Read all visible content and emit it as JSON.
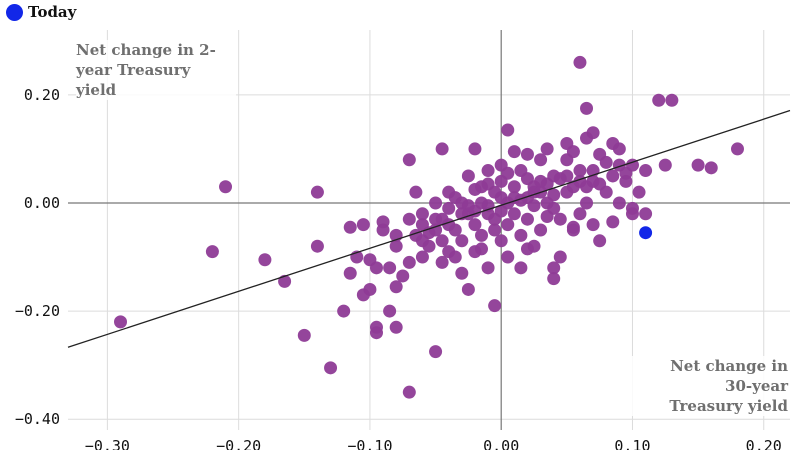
{
  "colors": {
    "scatter": "#8e3b96",
    "today": "#1227e8",
    "fit": "#222222",
    "grid": "#dcdcdc",
    "zero": "#777777",
    "label": "#6f6f6f"
  },
  "legend": {
    "label": "Today",
    "icon": "circle-marker"
  },
  "chart_data": {
    "type": "scatter",
    "xlabel": "Net change in\n30-year\nTreasury yield",
    "ylabel": "Net change in 2-\nyear Treasury\nyield",
    "xlim": [
      -0.33,
      0.22
    ],
    "ylim": [
      -0.42,
      0.32
    ],
    "x_ticks": [
      -0.3,
      -0.2,
      -0.1,
      0.0,
      0.1,
      0.2
    ],
    "x_tick_labels": [
      "−0.30",
      "−0.20",
      "−0.10",
      "0.00",
      "0.10",
      "0.20"
    ],
    "y_ticks": [
      -0.4,
      -0.2,
      0.0,
      0.2
    ],
    "y_tick_labels": [
      "−0.40",
      "−0.20",
      "0.00",
      "0.20"
    ],
    "grid": true,
    "legend_position": "top-left",
    "trendline": {
      "x": [
        -0.33,
        0.22
      ],
      "y": [
        -0.267,
        0.171
      ]
    },
    "series": [
      {
        "name": "",
        "points": [
          [
            -0.29,
            -0.22
          ],
          [
            -0.22,
            -0.09
          ],
          [
            -0.21,
            0.03
          ],
          [
            -0.18,
            -0.105
          ],
          [
            -0.165,
            -0.145
          ],
          [
            -0.15,
            -0.245
          ],
          [
            -0.14,
            -0.08
          ],
          [
            -0.14,
            0.02
          ],
          [
            -0.13,
            -0.305
          ],
          [
            -0.115,
            -0.13
          ],
          [
            -0.115,
            -0.045
          ],
          [
            -0.105,
            -0.17
          ],
          [
            -0.1,
            -0.105
          ],
          [
            -0.1,
            -0.16
          ],
          [
            -0.095,
            -0.23
          ],
          [
            -0.095,
            -0.24
          ],
          [
            -0.095,
            -0.12
          ],
          [
            -0.09,
            -0.035
          ],
          [
            -0.085,
            -0.2
          ],
          [
            -0.085,
            -0.12
          ],
          [
            -0.08,
            -0.155
          ],
          [
            -0.08,
            -0.23
          ],
          [
            -0.08,
            -0.06
          ],
          [
            -0.075,
            -0.135
          ],
          [
            -0.07,
            -0.35
          ],
          [
            -0.07,
            -0.11
          ],
          [
            -0.07,
            -0.03
          ],
          [
            -0.065,
            -0.06
          ],
          [
            -0.06,
            -0.04
          ],
          [
            -0.06,
            -0.1
          ],
          [
            -0.06,
            -0.02
          ],
          [
            -0.055,
            -0.08
          ],
          [
            -0.055,
            -0.055
          ],
          [
            -0.05,
            -0.275
          ],
          [
            -0.05,
            -0.05
          ],
          [
            -0.05,
            0.0
          ],
          [
            -0.045,
            -0.11
          ],
          [
            -0.045,
            -0.07
          ],
          [
            -0.045,
            -0.03
          ],
          [
            -0.04,
            -0.09
          ],
          [
            -0.04,
            -0.01
          ],
          [
            -0.04,
            0.02
          ],
          [
            -0.035,
            -0.05
          ],
          [
            -0.035,
            -0.1
          ],
          [
            -0.03,
            0.0
          ],
          [
            -0.03,
            -0.13
          ],
          [
            -0.03,
            -0.07
          ],
          [
            -0.025,
            -0.02
          ],
          [
            -0.025,
            0.05
          ],
          [
            -0.025,
            -0.16
          ],
          [
            -0.02,
            -0.04
          ],
          [
            -0.02,
            0.1
          ],
          [
            -0.02,
            -0.09
          ],
          [
            -0.015,
            0.0
          ],
          [
            -0.015,
            -0.06
          ],
          [
            -0.015,
            0.03
          ],
          [
            -0.01,
            -0.02
          ],
          [
            -0.01,
            0.06
          ],
          [
            -0.01,
            -0.12
          ],
          [
            -0.005,
            -0.05
          ],
          [
            -0.005,
            0.02
          ],
          [
            -0.005,
            -0.03
          ],
          [
            0.0,
            0.01
          ],
          [
            0.0,
            -0.07
          ],
          [
            0.0,
            0.04
          ],
          [
            0.005,
            -0.04
          ],
          [
            0.005,
            0.0
          ],
          [
            0.005,
            -0.1
          ],
          [
            0.01,
            0.03
          ],
          [
            0.01,
            -0.02
          ],
          [
            0.015,
            0.06
          ],
          [
            0.015,
            -0.06
          ],
          [
            0.02,
            0.01
          ],
          [
            0.02,
            -0.03
          ],
          [
            0.02,
            0.09
          ],
          [
            0.025,
            -0.08
          ],
          [
            0.025,
            0.02
          ],
          [
            0.03,
            0.04
          ],
          [
            0.03,
            -0.05
          ],
          [
            0.035,
            0.0
          ],
          [
            0.035,
            0.1
          ],
          [
            0.04,
            -0.01
          ],
          [
            0.04,
            0.05
          ],
          [
            0.045,
            -0.03
          ],
          [
            0.05,
            0.02
          ],
          [
            0.05,
            0.08
          ],
          [
            0.055,
            -0.05
          ],
          [
            0.055,
            0.03
          ],
          [
            0.06,
            0.06
          ],
          [
            0.06,
            -0.02
          ],
          [
            0.065,
            0.0
          ],
          [
            0.065,
            0.12
          ],
          [
            0.07,
            0.04
          ],
          [
            0.075,
            0.09
          ],
          [
            0.08,
            0.02
          ],
          [
            0.085,
            0.05
          ],
          [
            0.09,
            0.1
          ],
          [
            0.095,
            0.04
          ],
          [
            0.1,
            -0.01
          ],
          [
            0.1,
            0.07
          ],
          [
            0.105,
            0.02
          ],
          [
            0.11,
            0.06
          ],
          [
            0.12,
            0.19
          ],
          [
            0.125,
            0.07
          ],
          [
            0.13,
            0.19
          ],
          [
            0.15,
            0.07
          ],
          [
            0.16,
            0.065
          ],
          [
            0.18,
            0.1
          ],
          [
            0.06,
            0.26
          ],
          [
            0.065,
            0.175
          ],
          [
            0.07,
            0.13
          ],
          [
            -0.07,
            0.08
          ],
          [
            -0.045,
            0.1
          ],
          [
            -0.12,
            -0.2
          ],
          [
            0.005,
            0.135
          ],
          [
            0.04,
            -0.12
          ],
          [
            0.055,
            -0.045
          ],
          [
            0.075,
            -0.07
          ],
          [
            0.09,
            0.0
          ],
          [
            0.02,
            -0.085
          ],
          [
            -0.005,
            -0.19
          ],
          [
            0.045,
            -0.1
          ],
          [
            0.04,
            -0.14
          ],
          [
            0.1,
            -0.02
          ],
          [
            0.085,
            -0.035
          ],
          [
            0.03,
            0.08
          ],
          [
            0.01,
            0.095
          ],
          [
            0.05,
            0.11
          ],
          [
            -0.025,
            -0.005
          ],
          [
            0.0,
            -0.015
          ],
          [
            -0.06,
            -0.07
          ],
          [
            -0.04,
            -0.04
          ],
          [
            -0.02,
            -0.015
          ],
          [
            0.01,
            0.01
          ],
          [
            0.025,
            0.03
          ],
          [
            0.035,
            0.035
          ],
          [
            0.045,
            0.045
          ],
          [
            0.06,
            0.04
          ],
          [
            0.07,
            0.06
          ],
          [
            0.08,
            0.075
          ],
          [
            -0.03,
            -0.02
          ],
          [
            -0.01,
            -0.005
          ],
          [
            0.015,
            0.005
          ],
          [
            0.03,
            0.02
          ],
          [
            0.05,
            0.05
          ],
          [
            0.09,
            0.07
          ],
          [
            -0.08,
            -0.08
          ],
          [
            -0.09,
            -0.05
          ],
          [
            -0.05,
            -0.03
          ],
          [
            -0.035,
            0.01
          ],
          [
            0.02,
            0.045
          ],
          [
            0.04,
            0.015
          ],
          [
            0.065,
            0.03
          ],
          [
            0.075,
            0.035
          ],
          [
            0.095,
            0.055
          ],
          [
            -0.11,
            -0.1
          ],
          [
            -0.105,
            -0.04
          ],
          [
            0.0,
            0.07
          ],
          [
            -0.015,
            -0.085
          ],
          [
            0.015,
            -0.12
          ],
          [
            0.11,
            -0.02
          ],
          [
            0.085,
            0.11
          ],
          [
            0.07,
            -0.04
          ],
          [
            0.055,
            0.095
          ],
          [
            -0.065,
            0.02
          ],
          [
            0.025,
            -0.005
          ],
          [
            0.035,
            -0.025
          ],
          [
            -0.02,
            0.025
          ],
          [
            0.005,
            0.055
          ],
          [
            -0.01,
            0.035
          ]
        ]
      },
      {
        "name": "Today",
        "points": [
          [
            0.11,
            -0.055
          ]
        ]
      }
    ]
  }
}
